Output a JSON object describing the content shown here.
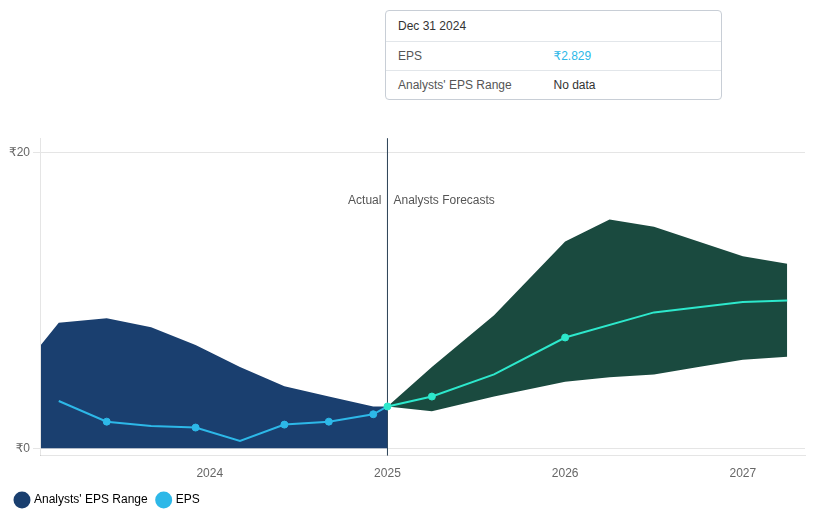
{
  "chart_data": {
    "type": "line",
    "xlim": [
      2023.05,
      2027.35
    ],
    "xticks": [
      2024,
      2025,
      2026,
      2027
    ],
    "ylim": [
      -0.5,
      21
    ],
    "yticks": [
      {
        "value": 0,
        "label": "₹0"
      },
      {
        "value": 20,
        "label": "₹20"
      }
    ],
    "grid": "y",
    "legend": "lower left",
    "series": [
      {
        "name": "Analysts' EPS Range",
        "type": "band",
        "color": "#1a3f6f",
        "x": [
          2023.05,
          2023.15,
          2023.42,
          2023.67,
          2023.92,
          2024.17,
          2024.42,
          2024.67,
          2024.92,
          2025.0
        ],
        "lower": [
          0.0,
          0.0,
          0.0,
          0.0,
          0.0,
          0.0,
          0.0,
          0.0,
          0.0,
          0.0
        ],
        "upper": [
          7.0,
          8.5,
          8.8,
          8.2,
          7.0,
          5.5,
          4.2,
          3.5,
          2.829,
          2.829
        ]
      },
      {
        "name": "Analysts' EPS Range",
        "type": "band",
        "color": "#1a4a3f",
        "x": [
          2025.0,
          2025.25,
          2025.6,
          2026.0,
          2026.25,
          2026.5,
          2026.75,
          2027.0,
          2027.25
        ],
        "lower": [
          2.829,
          2.5,
          3.5,
          4.5,
          4.8,
          5.0,
          5.5,
          6.0,
          6.2
        ],
        "upper": [
          2.829,
          5.5,
          9.0,
          14.0,
          15.5,
          15.0,
          14.0,
          13.0,
          12.5
        ]
      },
      {
        "name": "EPS",
        "type": "line",
        "color": "#2db8e8",
        "x": [
          2023.15,
          2023.42,
          2023.67,
          2023.92,
          2024.17,
          2024.42,
          2024.67,
          2024.92,
          2025.0
        ],
        "values": [
          3.2,
          1.8,
          1.5,
          1.4,
          0.5,
          1.6,
          1.8,
          2.3,
          2.829
        ]
      },
      {
        "name": "EPS",
        "type": "line",
        "color": "#2de8cc",
        "x": [
          2025.0,
          2025.25,
          2025.6,
          2026.0,
          2026.5,
          2027.0,
          2027.25
        ],
        "values": [
          2.829,
          3.5,
          5.0,
          7.5,
          9.2,
          9.9,
          10.0
        ]
      },
      {
        "name": "EPS",
        "type": "scatter",
        "color": "#2db8e8",
        "x": [
          2023.42,
          2023.92,
          2024.42,
          2024.67,
          2024.92
        ],
        "values": [
          1.8,
          1.4,
          1.6,
          1.8,
          2.3
        ]
      },
      {
        "name": "EPS",
        "type": "scatter",
        "color": "#2de8cc",
        "x": [
          2025.0,
          2025.25,
          2026.0
        ],
        "values": [
          2.829,
          3.5,
          7.5
        ]
      }
    ],
    "annotations": [
      {
        "type": "vline",
        "x": 2025.0,
        "color": "#2a4055"
      },
      {
        "text": "Actual",
        "x": 2025.0,
        "y": 17.2,
        "align": "right"
      },
      {
        "text": "Analysts Forecasts",
        "x": 2025.0,
        "y": 17.2,
        "align": "left"
      }
    ],
    "tooltip": {
      "title": "Dec 31 2024",
      "rows": [
        {
          "label": "EPS",
          "value": "₹2.829",
          "color": "#2db8e8"
        },
        {
          "label": "Analysts' EPS Range",
          "value": "No data"
        }
      ]
    }
  }
}
